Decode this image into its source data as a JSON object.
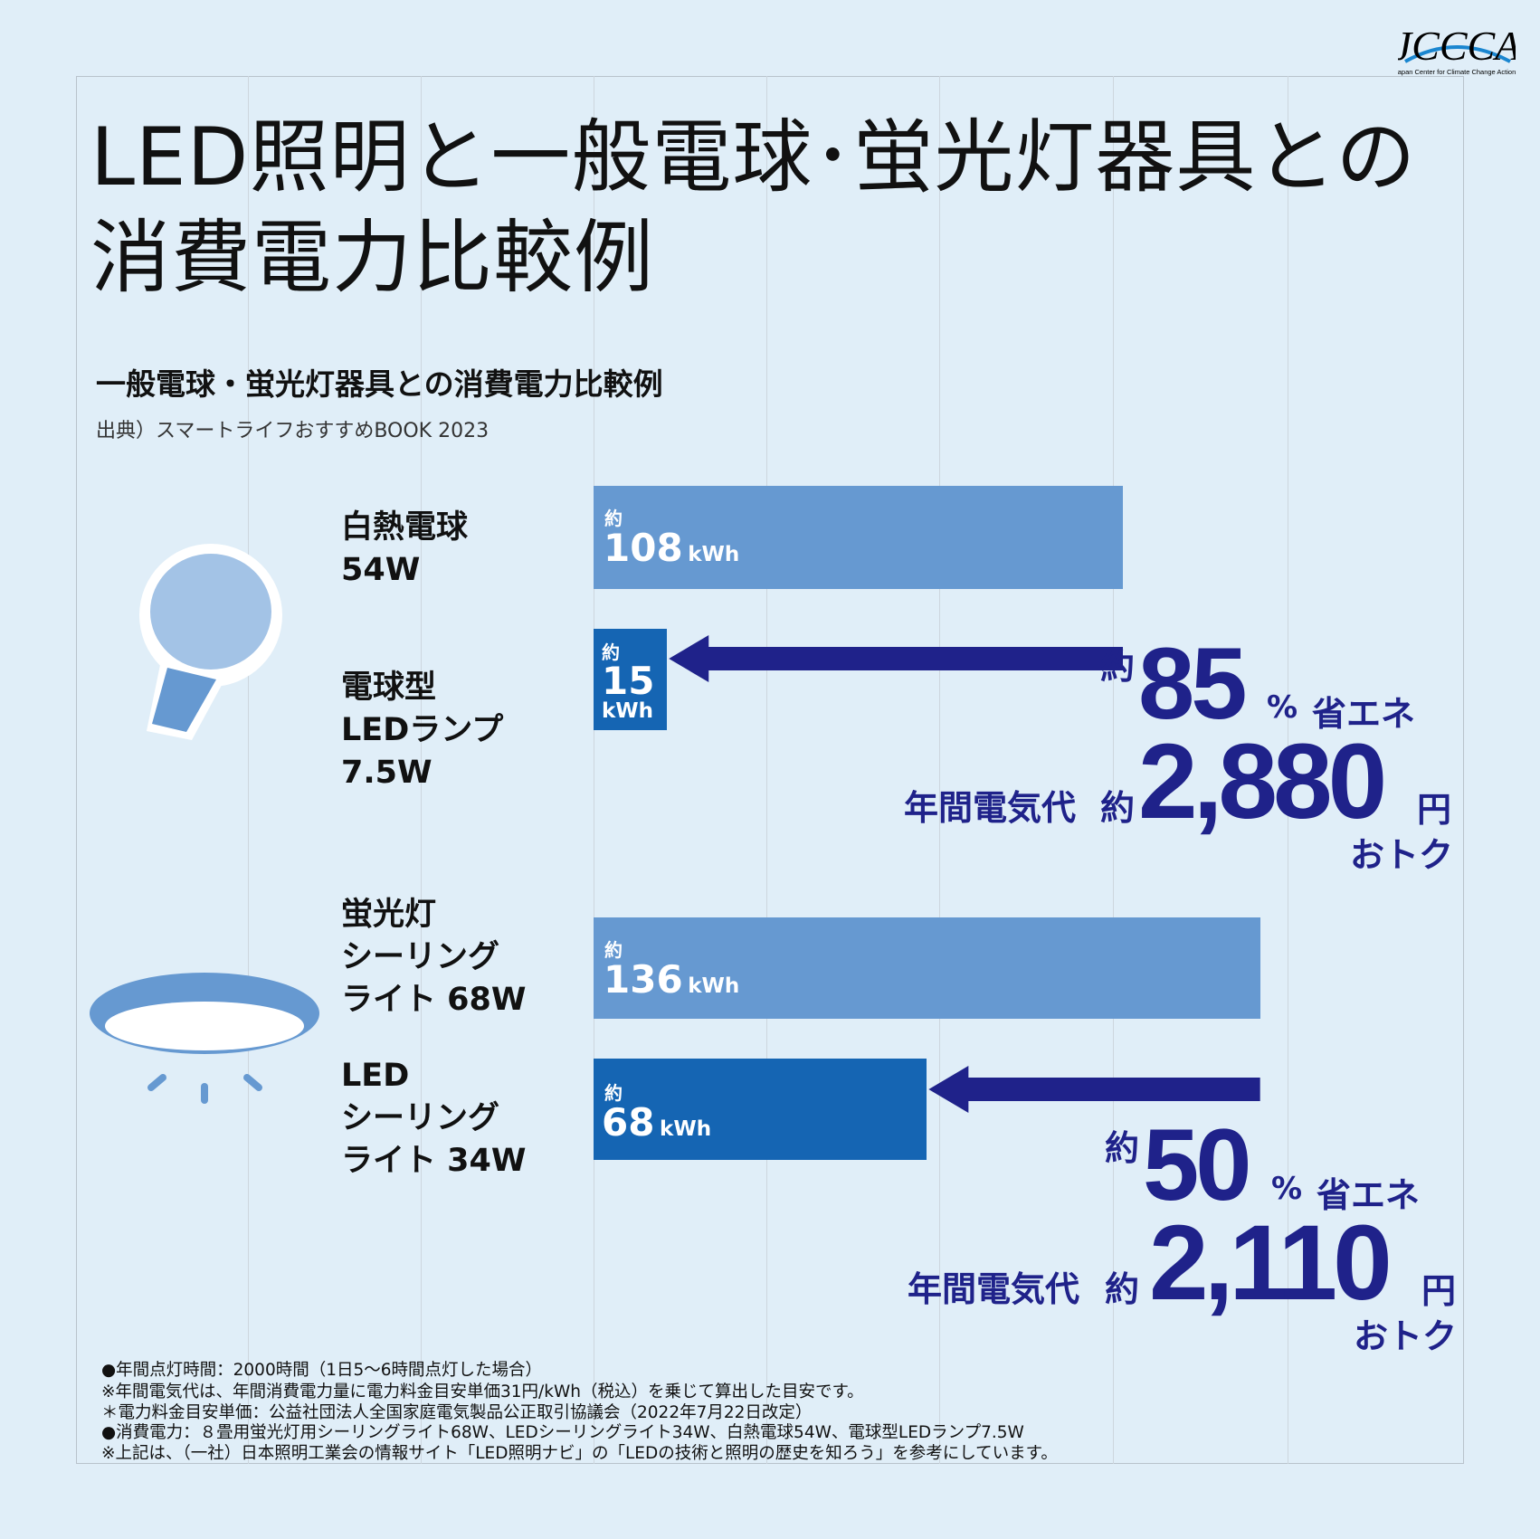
{
  "title": {
    "line1": "LED照明と一般電球･蛍光灯器具との",
    "line2": "消費電力比較例"
  },
  "subtitle": "一般電球・蛍光灯器具との消費電力比較例",
  "source": "出典）スマートライフおすすめBOOK 2023",
  "logo": {
    "text": "JCCCA",
    "tagline": "Japan Center for Climate Change Actions"
  },
  "colors": {
    "background": "#e0eef8",
    "old_bar": "#6699d1",
    "new_bar": "#1565b3",
    "arrow": "#1f228a",
    "accent_text": "#1f228a"
  },
  "icons": [
    "light-bulb-icon",
    "ceiling-light-icon"
  ],
  "labels": [
    {
      "lines": [
        "白熱電球",
        "54W"
      ]
    },
    {
      "lines": [
        "電球型",
        "LEDランプ",
        "7.5W"
      ]
    },
    {
      "lines": [
        "蛍光灯",
        "シーリング",
        "ライト 68W"
      ]
    },
    {
      "lines": [
        "LED",
        "シーリング",
        "ライト 34W"
      ]
    }
  ],
  "chart_data": {
    "type": "bar",
    "orientation": "horizontal",
    "categories": [
      "白熱電球 54W",
      "電球型LEDランプ 7.5W",
      "蛍光灯シーリングライト 68W",
      "LEDシーリングライト 34W"
    ],
    "values": [
      108,
      15,
      136,
      68
    ],
    "unit": "kWh",
    "prefix": "約",
    "data_labels": [
      "108",
      "15",
      "136",
      "68"
    ],
    "grid": true,
    "axes_visible": false
  },
  "savings": [
    {
      "prefix": "約",
      "percent": "85",
      "percent_sign": "%",
      "save_label": "省エネ",
      "cost_label": "年間電気代",
      "cost_prefix": "約",
      "amount": "2,880",
      "currency": "円",
      "suffix": "おトク"
    },
    {
      "prefix": "約",
      "percent": "50",
      "percent_sign": "%",
      "save_label": "省エネ",
      "cost_label": "年間電気代",
      "cost_prefix": "約",
      "amount": "2,110",
      "currency": "円",
      "suffix": "おトク"
    }
  ],
  "footnotes": [
    "●年間点灯時間：2000時間（1日5〜6時間点灯した場合）",
    "※年間電気代は、年間消費電力量に電力料金目安単価31円/kWh（税込）を乗じて算出した目安です。",
    "＊電力料金目安単価：公益社団法人全国家庭電気製品公正取引協議会（2022年7月22日改定）",
    "●消費電力：８畳用蛍光灯用シーリングライト68W、LEDシーリングライト34W、白熱電球54W、電球型LEDランプ7.5W",
    "※上記は、（一社）日本照明工業会の情報サイト「LED照明ナビ」の「LEDの技術と照明の歴史を知ろう」を参考にしています。"
  ]
}
